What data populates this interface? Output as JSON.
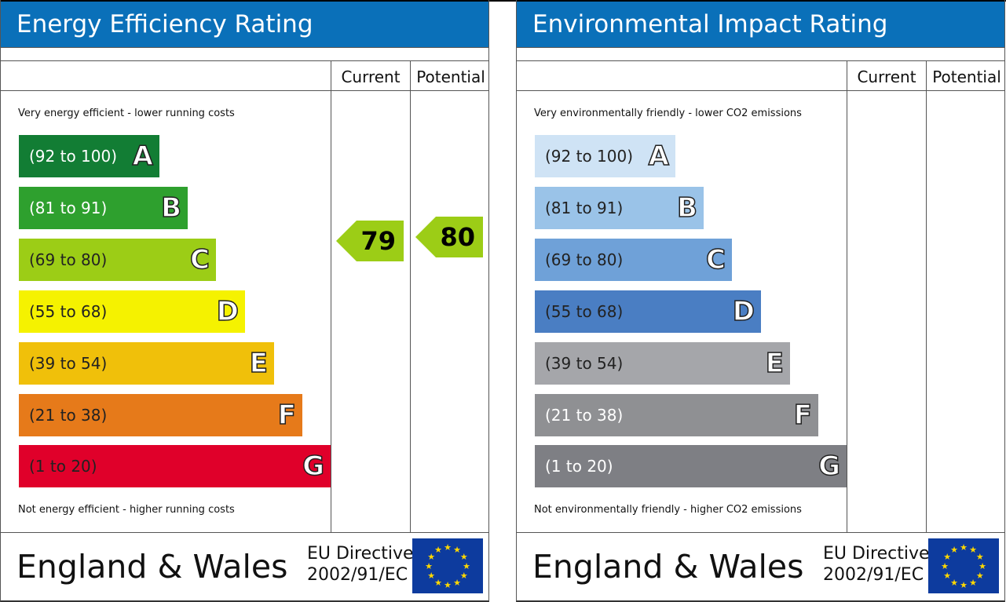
{
  "chart_data": [
    {
      "type": "table",
      "title": "Energy Efficiency Rating",
      "columns": [
        "Current",
        "Potential"
      ],
      "top_note": "Very energy efficient - lower running costs",
      "bottom_note": "Not energy efficient - higher running costs",
      "bands": [
        {
          "range": "(92 to 100)",
          "letter": "A",
          "color": "#127d34",
          "text": "#ffffff"
        },
        {
          "range": "(81 to 91)",
          "letter": "B",
          "color": "#2ea02e",
          "text": "#ffffff"
        },
        {
          "range": "(69 to 80)",
          "letter": "C",
          "color": "#9ccd16",
          "text": "#222222"
        },
        {
          "range": "(55 to 68)",
          "letter": "D",
          "color": "#f5f200",
          "text": "#222222"
        },
        {
          "range": "(39 to 54)",
          "letter": "E",
          "color": "#f0c00a",
          "text": "#222222"
        },
        {
          "range": "(21 to 38)",
          "letter": "F",
          "color": "#e67a1a",
          "text": "#222222"
        },
        {
          "range": "(1 to 20)",
          "letter": "G",
          "color": "#e0002a",
          "text": "#222222"
        }
      ],
      "current": 79,
      "potential": 80,
      "arrow_color": "#9ccd16",
      "footer": {
        "region": "England & Wales",
        "directive_line1": "EU Directive",
        "directive_line2": "2002/91/EC"
      }
    },
    {
      "type": "table",
      "title": "Environmental Impact Rating",
      "columns": [
        "Current",
        "Potential"
      ],
      "top_note": "Very environmentally friendly - lower CO2 emissions",
      "bottom_note": "Not environmentally friendly - higher CO2 emissions",
      "bands": [
        {
          "range": "(92 to 100)",
          "letter": "A",
          "color": "#cfe3f5",
          "text": "#222222"
        },
        {
          "range": "(81 to 91)",
          "letter": "B",
          "color": "#9ac3e8",
          "text": "#222222"
        },
        {
          "range": "(69 to 80)",
          "letter": "C",
          "color": "#6fa1d8",
          "text": "#222222"
        },
        {
          "range": "(55 to 68)",
          "letter": "D",
          "color": "#4a7ec3",
          "text": "#222222"
        },
        {
          "range": "(39 to 54)",
          "letter": "E",
          "color": "#a5a6aa",
          "text": "#222222"
        },
        {
          "range": "(21 to 38)",
          "letter": "F",
          "color": "#8f9093",
          "text": "#ffffff"
        },
        {
          "range": "(1 to 20)",
          "letter": "G",
          "color": "#7e7f84",
          "text": "#ffffff"
        }
      ],
      "current": null,
      "potential": null,
      "footer": {
        "region": "England & Wales",
        "directive_line1": "EU Directive",
        "directive_line2": "2002/91/EC"
      }
    }
  ]
}
